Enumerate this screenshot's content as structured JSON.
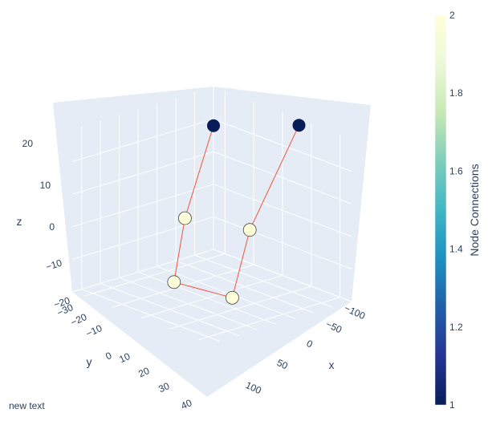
{
  "chart_data": {
    "type": "scatter3d",
    "axes": {
      "x": {
        "label": "x",
        "ticks": [
          "−100",
          "−50",
          "0",
          "50",
          "100"
        ],
        "tick_values": [
          -100,
          -50,
          0,
          50,
          100
        ]
      },
      "y": {
        "label": "y",
        "ticks": [
          "−30",
          "−20",
          "−10",
          "0",
          "10",
          "20",
          "30",
          "40"
        ],
        "tick_values": [
          -30,
          -20,
          -10,
          0,
          10,
          20,
          30,
          40
        ]
      },
      "z": {
        "label": "z",
        "ticks": [
          "−20",
          "−10",
          "0",
          "10",
          "20"
        ],
        "tick_values": [
          -20,
          -10,
          0,
          10,
          20
        ]
      }
    },
    "nodes": [
      {
        "x": -120,
        "y": -30,
        "z": 18,
        "connections": 1
      },
      {
        "x": -55,
        "y": 5,
        "z": 0,
        "connections": 2
      },
      {
        "x": -25,
        "y": 20,
        "z": -15,
        "connections": 2
      },
      {
        "x": 60,
        "y": 15,
        "z": -15,
        "connections": 2
      },
      {
        "x": 25,
        "y": -5,
        "z": 0,
        "connections": 2
      },
      {
        "x": 45,
        "y": -25,
        "z": 30,
        "connections": 1
      }
    ],
    "edges": [
      [
        0,
        1
      ],
      [
        1,
        2
      ],
      [
        2,
        3
      ],
      [
        3,
        4
      ],
      [
        4,
        5
      ]
    ],
    "line_color": "#ef553b",
    "colorscale": "YlGnBu",
    "colorbar": {
      "title": "Node Connections",
      "min": 1,
      "max": 2,
      "ticks": [
        "1",
        "1.2",
        "1.4",
        "1.6",
        "1.8",
        "2"
      ],
      "tick_values": [
        1,
        1.2,
        1.4,
        1.6,
        1.8,
        2
      ]
    },
    "scene_background": "#e5ecf6",
    "grid": true,
    "annotation": "new text"
  }
}
